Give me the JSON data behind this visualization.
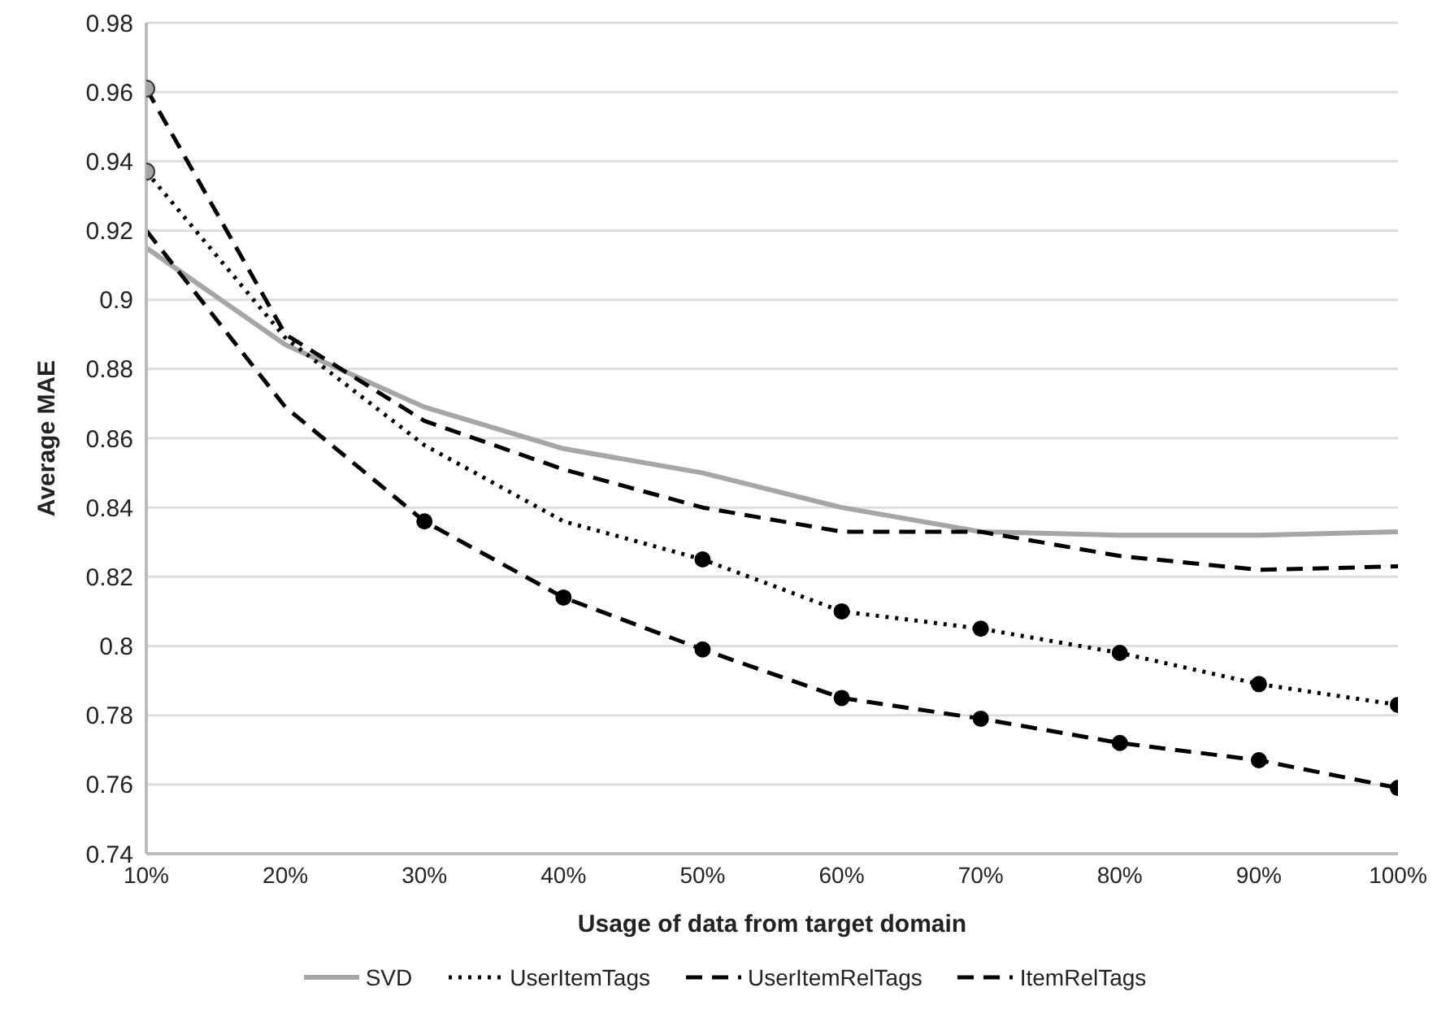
{
  "chart_data": {
    "type": "line",
    "xlabel": "Usage of data from target domain",
    "ylabel": "Average MAE",
    "categories": [
      "10%",
      "20%",
      "30%",
      "40%",
      "50%",
      "60%",
      "70%",
      "80%",
      "90%",
      "100%"
    ],
    "ylim": [
      0.74,
      0.98
    ],
    "yticks": [
      0.74,
      0.76,
      0.78,
      0.8,
      0.82,
      0.84,
      0.86,
      0.88,
      0.9,
      0.92,
      0.94,
      0.96,
      0.98
    ],
    "grid": "y",
    "legend": "bottom",
    "marker": "none",
    "series": [
      {
        "name": "SVD",
        "color": "#a6a6a6",
        "line_style": "solid",
        "values": [
          0.915,
          0.887,
          0.869,
          0.857,
          0.85,
          0.84,
          0.833,
          0.832,
          0.832,
          0.833
        ]
      },
      {
        "name": "UserItemTags",
        "color": "#000000",
        "line_style": "dotted",
        "values": [
          0.937,
          0.889,
          0.858,
          0.836,
          0.825,
          0.81,
          0.805,
          0.798,
          0.789,
          0.783
        ]
      },
      {
        "name": "UserItemRelTags",
        "color": "#000000",
        "line_style": "dashed",
        "values": [
          0.92,
          0.869,
          0.836,
          0.814,
          0.799,
          0.785,
          0.779,
          0.772,
          0.767,
          0.759
        ]
      },
      {
        "name": "ItemRelTags",
        "color": "#000000",
        "line_style": "dashed",
        "values": [
          0.961,
          0.89,
          0.865,
          0.851,
          0.84,
          0.833,
          0.833,
          0.826,
          0.822,
          0.823
        ]
      },
      {
        "type": "scatter",
        "color": "#000000",
        "marker": "circle",
        "x": [
          "50%",
          "60%",
          "70%",
          "80%",
          "90%",
          "100%",
          "30%",
          "40%",
          "50%",
          "60%",
          "70%",
          "80%",
          "90%",
          "100%"
        ],
        "values": [
          0.825,
          0.81,
          0.805,
          0.798,
          0.789,
          0.783,
          0.836,
          0.814,
          0.799,
          0.785,
          0.779,
          0.772,
          0.767,
          0.759
        ]
      },
      {
        "type": "scatter",
        "color": "#a6a6a6",
        "marker": "circle",
        "x": [
          "10%",
          "10%"
        ],
        "values": [
          0.937,
          0.961
        ]
      }
    ]
  }
}
